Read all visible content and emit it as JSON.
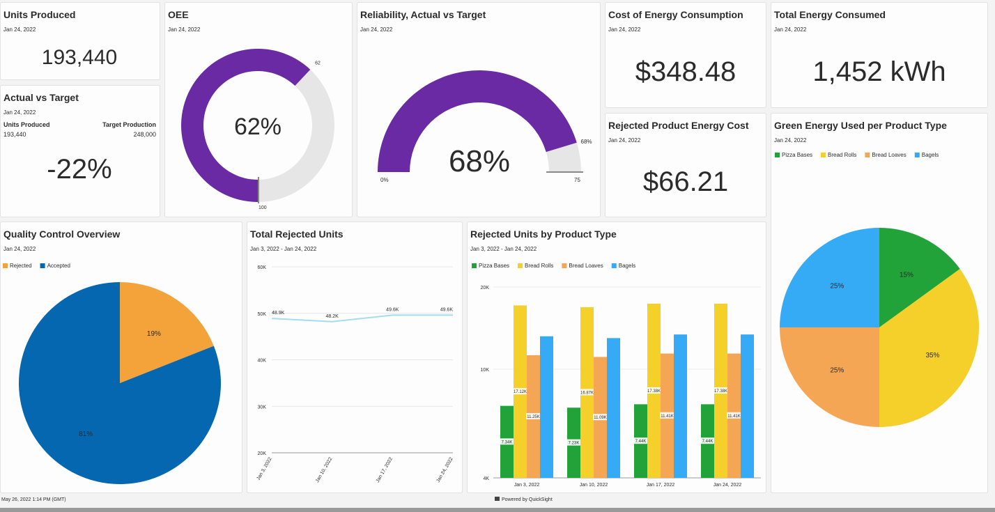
{
  "kpis": [
    {
      "title": "Units Produced",
      "date": "Jan 24, 2022",
      "value": "193,440"
    },
    {
      "title": "Actual vs Target",
      "date": "Jan 24, 2022",
      "left_label": "Units Produced",
      "left_value": "193,440",
      "right_label": "Target Production",
      "right_value": "248,000",
      "value": "-22%"
    },
    {
      "title": "Cost of Energy Consumption",
      "date": "Jan 24, 2022",
      "value": "$348.48"
    },
    {
      "title": "Total Energy Consumed",
      "date": "Jan 24, 2022",
      "value": "1,452 kWh"
    },
    {
      "title": "Rejected Product Energy Cost",
      "date": "Jan 24, 2022",
      "value": "$66.21"
    }
  ],
  "chart_data": [
    {
      "type": "donut",
      "title": "OEE",
      "subtitle": "Jan 24, 2022",
      "value": 62,
      "value_label": "62%",
      "max": 100,
      "color": "#6a2aa3",
      "track_color": "#e6e6e6"
    },
    {
      "type": "gauge",
      "title": "Reliability, Actual vs Target",
      "subtitle": "Jan 24, 2022",
      "value": 68,
      "value_label": "68%",
      "min": 0,
      "min_label": "0%",
      "max": 75,
      "color": "#6a2aa3",
      "track_color": "#e6e6e6"
    },
    {
      "type": "pie",
      "title": "Quality Control Overview",
      "subtitle": "Jan 24, 2022",
      "categories": [
        "Rejected",
        "Accepted"
      ],
      "values": [
        19,
        81
      ],
      "value_labels": [
        "19%",
        "81%"
      ],
      "colors": [
        "#f4a23a",
        "#0567b0"
      ]
    },
    {
      "type": "line",
      "title": "Total Rejected Units",
      "subtitle": "Jan 3, 2022 - Jan 24, 2022",
      "categories": [
        "Jan 3, 2022",
        "Jan 10, 2022",
        "Jan 17, 2022",
        "Jan 24, 2022"
      ],
      "values": [
        48900,
        48200,
        49600,
        49600
      ],
      "value_labels": [
        "48.9K",
        "48.2K",
        "49.6K",
        "49.6K"
      ],
      "color": "#a6dcef",
      "ylim": [
        20000,
        60000
      ],
      "yticks": [
        {
          "value": 20000,
          "label": "20K"
        },
        {
          "value": 30000,
          "label": "30K"
        },
        {
          "value": 40000,
          "label": "40K"
        },
        {
          "value": 50000,
          "label": "50K"
        },
        {
          "value": 60000,
          "label": "60K"
        }
      ],
      "grid": true
    },
    {
      "type": "bar",
      "title": "Rejected Units by Product Type",
      "subtitle": "Jan 3, 2022 - Jan 24, 2022",
      "categories": [
        "Jan 3, 2022",
        "Jan 10, 2022",
        "Jan 17, 2022",
        "Jan 24, 2022"
      ],
      "series": [
        {
          "name": "Pizza Bases",
          "color": "#22a339",
          "values": [
            7340,
            7230,
            7440,
            7440
          ],
          "value_labels": [
            "7.34K",
            "7.23K",
            "7.44K",
            "7.44K"
          ]
        },
        {
          "name": "Bread Rolls",
          "color": "#f5cf2a",
          "values": [
            17120,
            16870,
            17380,
            17380
          ],
          "value_labels": [
            "17.12K",
            "16.87K",
            "17.38K",
            "17.38K"
          ]
        },
        {
          "name": "Bread Loaves",
          "color": "#f4a655",
          "values": [
            11250,
            11090,
            11410,
            11410
          ],
          "value_labels": [
            "11.25K",
            "11.09K",
            "11.41K",
            "11.41K"
          ]
        },
        {
          "name": "Bagels",
          "color": "#35aaf5",
          "values": [
            13200,
            13000,
            13400,
            13400
          ]
        }
      ],
      "ylim": [
        4000,
        20000
      ],
      "yticks": [
        {
          "value": 4000,
          "label": "4K"
        },
        {
          "value": 10000,
          "label": "10K"
        },
        {
          "value": 20000,
          "label": "20K"
        }
      ],
      "log_scale": true,
      "grid": true
    },
    {
      "type": "pie",
      "title": "Green Energy Used per Product Type",
      "subtitle": "Jan 24, 2022",
      "categories": [
        "Pizza Bases",
        "Bread Rolls",
        "Bread Loaves",
        "Bagels"
      ],
      "values": [
        15,
        35,
        25,
        25
      ],
      "value_labels": [
        "15%",
        "35%",
        "25%",
        "25%"
      ],
      "colors": [
        "#22a339",
        "#f5cf2a",
        "#f4a655",
        "#35aaf5"
      ]
    }
  ],
  "footer": {
    "timestamp": "May 26, 2022 1:14 PM (GMT)",
    "powered_by": "Powered by QuickSight"
  }
}
